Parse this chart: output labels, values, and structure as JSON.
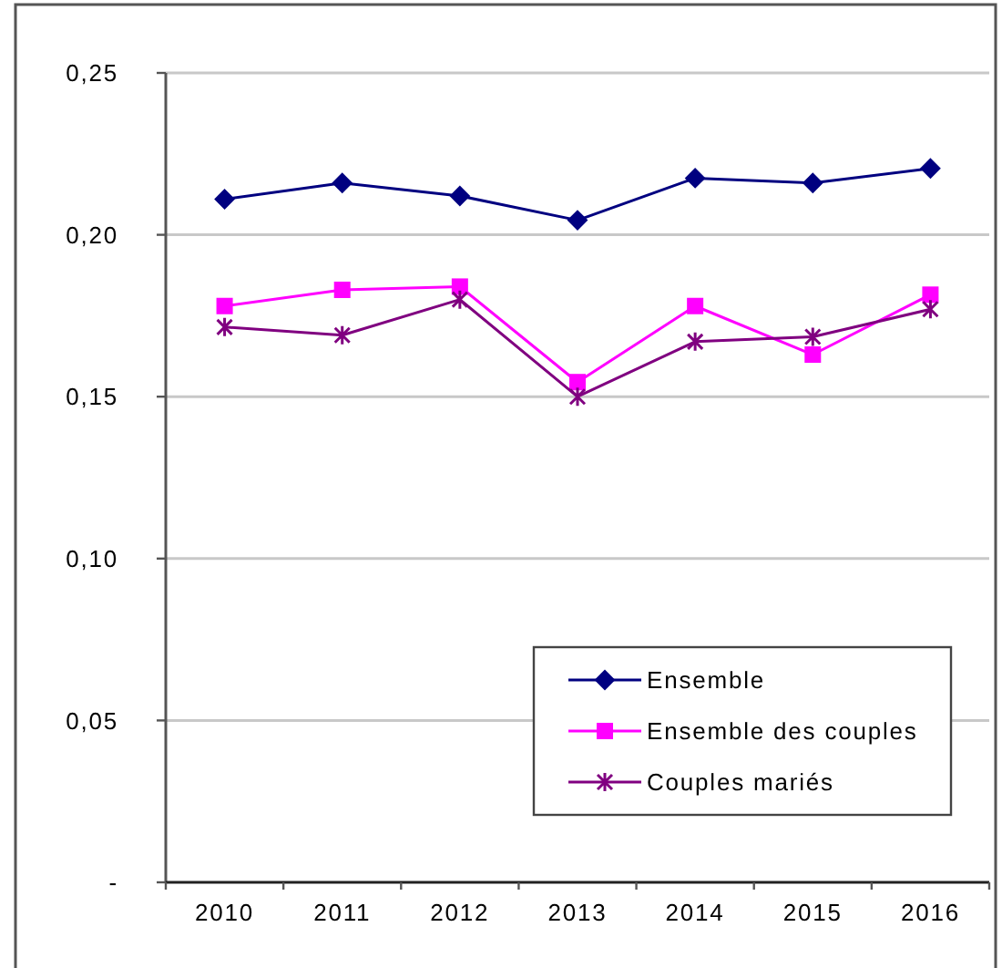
{
  "chart_data": {
    "type": "line",
    "categories": [
      "2010",
      "2011",
      "2012",
      "2013",
      "2014",
      "2015",
      "2016"
    ],
    "series": [
      {
        "name": "Ensemble",
        "color": "#000080",
        "marker": "diamond",
        "values": [
          0.211,
          0.216,
          0.212,
          0.2045,
          0.2175,
          0.216,
          0.2205
        ]
      },
      {
        "name": "Ensemble des couples",
        "color": "#ff00ff",
        "marker": "square",
        "values": [
          0.178,
          0.183,
          0.184,
          0.1545,
          0.178,
          0.163,
          0.1815
        ]
      },
      {
        "name": "Couples mariés",
        "color": "#800080",
        "marker": "cross",
        "values": [
          0.1715,
          0.169,
          0.18,
          0.15,
          0.167,
          0.1685,
          0.177
        ]
      }
    ],
    "ylim": [
      0,
      0.25
    ],
    "yticks": [
      {
        "value": 0,
        "label": "-"
      },
      {
        "value": 0.05,
        "label": "0,05"
      },
      {
        "value": 0.1,
        "label": "0,10"
      },
      {
        "value": 0.15,
        "label": "0,15"
      },
      {
        "value": 0.2,
        "label": "0,20"
      },
      {
        "value": 0.25,
        "label": "0,25"
      }
    ],
    "grid": "y",
    "legend": "bottom right",
    "line_style": "solid"
  }
}
